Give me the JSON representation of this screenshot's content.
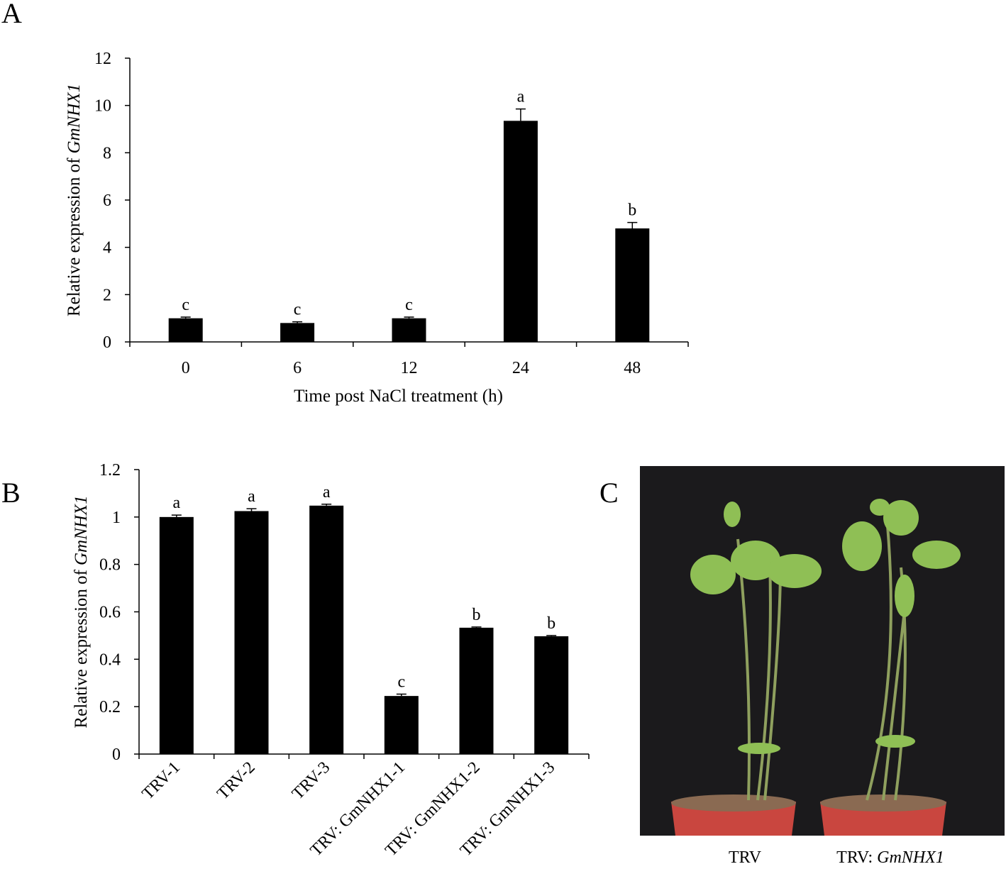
{
  "chart_data": [
    {
      "type": "bar",
      "panel": "A",
      "categories": [
        "0",
        "6",
        "12",
        "24",
        "48"
      ],
      "values": [
        1.0,
        0.8,
        1.0,
        9.35,
        4.8
      ],
      "errors": [
        0.05,
        0.05,
        0.05,
        0.5,
        0.25
      ],
      "annotations": [
        "c",
        "c",
        "c",
        "a",
        "b"
      ],
      "color": "#000000",
      "ylim": [
        0,
        12
      ],
      "yticks": [
        0,
        2,
        4,
        6,
        8,
        10,
        12
      ],
      "xlabel": "Time post NaCl treatment (h)",
      "ylabel": [
        "Relative expression of",
        "GmNHX1"
      ],
      "xtick_rotation": 0
    },
    {
      "type": "bar",
      "panel": "B",
      "categories": [
        "TRV-1",
        "TRV-2",
        "TRV-3",
        "TRV: GmNHX1-1",
        "TRV: GmNHX1-2",
        "TRV: GmNHX1-3"
      ],
      "values": [
        1.0,
        1.025,
        1.048,
        0.245,
        0.533,
        0.497
      ],
      "errors": [
        0.008,
        0.01,
        0.006,
        0.008,
        0.003,
        0.003
      ],
      "annotations": [
        "a",
        "a",
        "a",
        "c",
        "b",
        "b"
      ],
      "color": "#000000",
      "ylim": [
        0,
        1.2
      ],
      "yticks": [
        0,
        0.2,
        0.4,
        0.6,
        0.8,
        1,
        1.2
      ],
      "ylabel": [
        "Relative expression of",
        "GmNHX1"
      ],
      "xtick_rotation": -45
    }
  ],
  "photo": {
    "panel": "C",
    "labels": [
      "TRV",
      "TRV:",
      "GmNHX1"
    ]
  }
}
